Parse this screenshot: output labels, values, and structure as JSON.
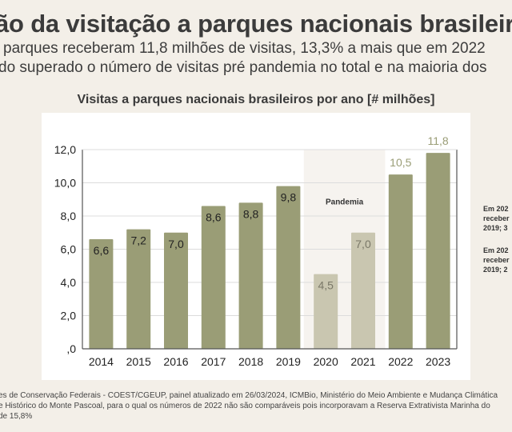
{
  "header": {
    "title": "ão da visitação a parques nacionais brasileiros 1",
    "subtitle_line1": "parques receberam 11,8 milhões de visitas, 13,3% a mais que em 2022",
    "subtitle_line2": "do superado o número de visitas pré pandemia no total e na maioria dos"
  },
  "colors": {
    "background": "#f3efe8",
    "bar_normal": "#9a9d76",
    "bar_pandemic": "#c9c6b0",
    "pandemic_band": "#f6f3ef",
    "label_dark": "#222222",
    "label_pandemic": "#7a7868",
    "label_above": "#9a9d76"
  },
  "chart_data": {
    "type": "bar",
    "title": "Visitas a parques nacionais brasileiros por ano [# milhões]",
    "xlabel": "",
    "ylabel": "",
    "categories": [
      "2014",
      "2015",
      "2016",
      "2017",
      "2018",
      "2019",
      "2020",
      "2021",
      "2022",
      "2023"
    ],
    "values": [
      6.6,
      7.2,
      7.0,
      8.6,
      8.8,
      9.8,
      4.5,
      7.0,
      10.5,
      11.8
    ],
    "value_labels": [
      "6,6",
      "7,2",
      "7,0",
      "8,6",
      "8,8",
      "9,8",
      "4,5",
      "7,0",
      "10,5",
      "11,8"
    ],
    "ylim": [
      0,
      12
    ],
    "yticks": [
      0,
      2,
      4,
      6,
      8,
      10,
      12
    ],
    "ytick_labels": [
      ",0",
      "2,0",
      "4,0",
      "6,0",
      "8,0",
      "10,0",
      "12,0"
    ],
    "grid": true,
    "highlight_region": {
      "label": "Pandemia",
      "categories": [
        "2020",
        "2021"
      ]
    },
    "pandemic_categories": [
      "2020",
      "2021"
    ],
    "labels_above_bar": [
      "2022",
      "2023"
    ]
  },
  "notes": [
    {
      "line1": "Em 202",
      "line2": "receber",
      "line3": "2019; 3"
    },
    {
      "line1": "Em 202",
      "line2": "receber",
      "line3": "2019; 2"
    }
  ],
  "footer": {
    "line1": "es de Conservação Federais - COEST/CGEUP, painel atualizado em 26/03/2024, ICMBio, Ministério do Meio Ambiente e Mudança Climática",
    "line2": "e Histórico do Monte Pascoal, para o qual os números de 2022 não são comparáveis pois incorporavam a Reserva Extrativista Marinha do",
    "line3": "de 15,8%"
  }
}
